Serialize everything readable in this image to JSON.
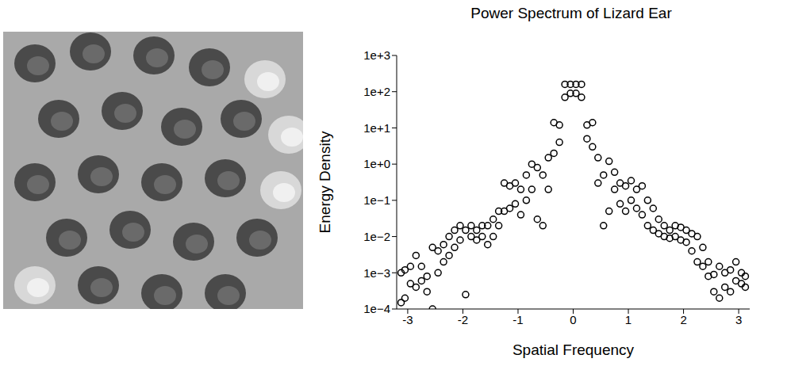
{
  "chart_data": {
    "type": "scatter",
    "title": "Power Spectrum of Lizard Ear",
    "x_label": "Spatial Frequency",
    "y_label": "Energy Density",
    "log": "y",
    "grid": false,
    "color": "#000000",
    "marker": "circle",
    "xlim": [
      -3.2,
      3.2
    ],
    "xticks": [
      -3,
      -2,
      -1,
      0,
      1,
      2,
      3
    ],
    "ylim": [
      0.0001,
      1000
    ],
    "yticks": [
      {
        "value": 0.0001,
        "label": "1e−4"
      },
      {
        "value": 0.001,
        "label": "1e−3"
      },
      {
        "value": 0.01,
        "label": "1e−2"
      },
      {
        "value": 0.1,
        "label": "1e−1"
      },
      {
        "value": 1,
        "label": "1e+0"
      },
      {
        "value": 10,
        "label": "1e+1"
      },
      {
        "value": 100,
        "label": "1e+2"
      },
      {
        "value": 1000,
        "label": "1e+3"
      }
    ],
    "x": [
      -3.12,
      -3.12,
      -3.05,
      -3.05,
      -2.95,
      -2.95,
      -2.85,
      -2.85,
      -2.75,
      -2.75,
      -2.65,
      -2.65,
      -2.55,
      -2.55,
      -2.45,
      -2.45,
      -2.35,
      -2.35,
      -2.25,
      -2.25,
      -2.15,
      -2.15,
      -2.05,
      -2.05,
      -1.95,
      -1.95,
      -1.85,
      -1.85,
      -1.75,
      -1.75,
      -1.65,
      -1.65,
      -1.55,
      -1.55,
      -1.45,
      -1.45,
      -1.35,
      -1.35,
      -1.25,
      -1.25,
      -1.15,
      -1.15,
      -1.05,
      -1.05,
      -0.95,
      -0.95,
      -0.85,
      -0.85,
      -0.75,
      -0.75,
      -0.65,
      -0.65,
      -0.55,
      -0.55,
      -0.45,
      -0.45,
      -0.35,
      -0.35,
      -0.25,
      -0.25,
      -0.15,
      -0.15,
      -0.05,
      -0.05,
      0.05,
      0.05,
      0.15,
      0.15,
      0.25,
      0.25,
      0.35,
      0.35,
      0.45,
      0.45,
      0.55,
      0.55,
      0.65,
      0.65,
      0.75,
      0.75,
      0.85,
      0.85,
      0.95,
      0.95,
      1.05,
      1.05,
      1.15,
      1.15,
      1.25,
      1.25,
      1.35,
      1.35,
      1.45,
      1.45,
      1.55,
      1.55,
      1.65,
      1.65,
      1.75,
      1.75,
      1.85,
      1.85,
      1.95,
      1.95,
      2.05,
      2.05,
      2.15,
      2.15,
      2.25,
      2.25,
      2.35,
      2.35,
      2.45,
      2.45,
      2.55,
      2.55,
      2.65,
      2.65,
      2.75,
      2.75,
      2.85,
      2.85,
      2.95,
      2.95,
      3.05,
      3.05,
      3.12,
      3.12
    ],
    "values": [
      0.001,
      0.00015,
      0.0012,
      0.0002,
      0.0015,
      0.0005,
      0.003,
      0.0004,
      0.0015,
      0.0006,
      0.0008,
      0.0003,
      0.005,
      0.0001,
      0.004,
      0.001,
      0.006,
      0.002,
      0.01,
      0.003,
      0.015,
      0.005,
      0.02,
      0.008,
      0.015,
      0.00025,
      0.02,
      0.01,
      0.015,
      0.008,
      0.02,
      0.01,
      0.02,
      0.006,
      0.03,
      0.01,
      0.05,
      0.02,
      0.3,
      0.05,
      0.25,
      0.06,
      0.3,
      0.08,
      0.2,
      0.04,
      0.5,
      0.1,
      1.0,
      0.2,
      0.8,
      0.03,
      0.5,
      0.02,
      1.5,
      0.2,
      14,
      2,
      12,
      4,
      160,
      70,
      160,
      90,
      160,
      90,
      160,
      70,
      12,
      5,
      14,
      3,
      1.5,
      0.3,
      0.5,
      0.02,
      1.2,
      0.05,
      0.6,
      0.2,
      0.3,
      0.08,
      0.25,
      0.05,
      0.35,
      0.1,
      0.2,
      0.06,
      0.25,
      0.04,
      0.1,
      0.02,
      0.06,
      0.015,
      0.03,
      0.012,
      0.02,
      0.01,
      0.015,
      0.009,
      0.02,
      0.01,
      0.018,
      0.008,
      0.015,
      0.007,
      0.012,
      0.004,
      0.01,
      0.002,
      0.005,
      0.0015,
      0.002,
      0.0008,
      0.0009,
      0.0003,
      0.0015,
      0.0002,
      0.001,
      0.0004,
      0.0012,
      0.0003,
      0.002,
      0.0006,
      0.001,
      0.0005,
      0.0008,
      0.0004
    ]
  }
}
